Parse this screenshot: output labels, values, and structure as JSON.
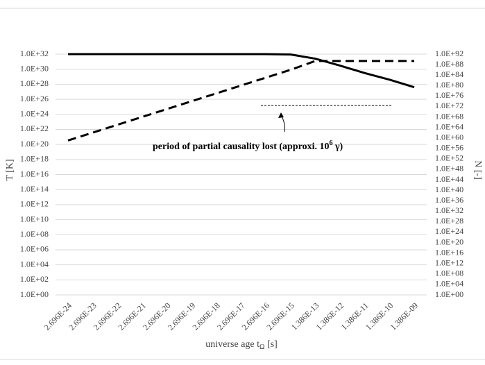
{
  "chart_data": {
    "type": "line",
    "x_label": {
      "text": "universe age t",
      "subscript": "Ω",
      "text_end": " [s]"
    },
    "y_label": "T [K]",
    "y2_label": "N [-]",
    "annotation": {
      "text": "period of partial causality lost (approxi. 10",
      "superscript": "6",
      "text_end": " γ)"
    },
    "categories": [
      "2.696E-24",
      "2.696E-23",
      "2.696E-22",
      "2.696E-21",
      "2.696E-20",
      "2.696E-19",
      "2.696E-18",
      "2.696E-17",
      "2.696E-16",
      "2.696E-15",
      "1.386E-13",
      "1.386E-12",
      "1.386E-11",
      "1.386E-10",
      "1.386E-09"
    ],
    "series": [
      {
        "name": "T",
        "color": "#000000",
        "linestyle": "solid",
        "axis": "y",
        "values": [
          1e+32,
          1e+32,
          1e+32,
          1e+32,
          1e+32,
          1e+32,
          1e+32,
          1e+32,
          1e+32,
          9e+31,
          2.5e+31,
          3e+30,
          3e+29,
          4e+28,
          4e+27
        ]
      },
      {
        "name": "N",
        "color": "#000000",
        "linestyle": "dashed",
        "axis": "y2",
        "values": [
          1e+59,
          1e+62,
          1e+65,
          1e+68,
          1e+71,
          1e+74,
          1e+77,
          1e+80,
          1e+83,
          1e+86,
          2.5e+89,
          2.5e+89,
          2.5e+89,
          2.5e+89,
          2.5e+89
        ]
      }
    ],
    "ylog": true,
    "y2log": true,
    "grid": true,
    "ylim": [
      1,
      1e+32
    ],
    "yticks": [
      {
        "value": 1,
        "label": "1.0E+00"
      },
      {
        "value": 100.0,
        "label": "1.0E+02"
      },
      {
        "value": 10000.0,
        "label": "1.0E+04"
      },
      {
        "value": 1000000.0,
        "label": "1.0E+06"
      },
      {
        "value": 100000000.0,
        "label": "1.0E+08"
      },
      {
        "value": 10000000000.0,
        "label": "1.0E+10"
      },
      {
        "value": 1000000000000.0,
        "label": "1.0E+12"
      },
      {
        "value": 100000000000000.0,
        "label": "1.0E+14"
      },
      {
        "value": 1e+16,
        "label": "1.0E+16"
      },
      {
        "value": 1e+18,
        "label": "1.0E+18"
      },
      {
        "value": 1e+20,
        "label": "1.0E+20"
      },
      {
        "value": 1e+22,
        "label": "1.0E+22"
      },
      {
        "value": 1e+24,
        "label": "1.0E+24"
      },
      {
        "value": 1e+26,
        "label": "1.0E+26"
      },
      {
        "value": 1e+28,
        "label": "1.0E+28"
      },
      {
        "value": 1e+30,
        "label": "1.0E+30"
      },
      {
        "value": 1e+32,
        "label": "1.0E+32"
      }
    ],
    "y2lim": [
      1,
      1e+92
    ],
    "y2ticks": [
      {
        "value": 1,
        "label": "1.0E+00"
      },
      {
        "value": 10000.0,
        "label": "1.0E+04"
      },
      {
        "value": 100000000.0,
        "label": "1.0E+08"
      },
      {
        "value": 1000000000000.0,
        "label": "1.0E+12"
      },
      {
        "value": 1e+16,
        "label": "1.0E+16"
      },
      {
        "value": 1e+20,
        "label": "1.0E+20"
      },
      {
        "value": 1e+24,
        "label": "1.0E+24"
      },
      {
        "value": 1e+28,
        "label": "1.0E+28"
      },
      {
        "value": 1e+32,
        "label": "1.0E+32"
      },
      {
        "value": 1e+36,
        "label": "1.0E+36"
      },
      {
        "value": 1e+40,
        "label": "1.0E+40"
      },
      {
        "value": 1e+44,
        "label": "1.0E+44"
      },
      {
        "value": 1e+48,
        "label": "1.0E+48"
      },
      {
        "value": 1e+52,
        "label": "1.0E+52"
      },
      {
        "value": 1e+56,
        "label": "1.0E+56"
      },
      {
        "value": 1e+60,
        "label": "1.0E+60"
      },
      {
        "value": 1e+64,
        "label": "1.0E+64"
      },
      {
        "value": 1e+68,
        "label": "1.0E+68"
      },
      {
        "value": 1e+72,
        "label": "1.0E+72"
      },
      {
        "value": 1e+76,
        "label": "1.0E+76"
      },
      {
        "value": 1e+80,
        "label": "1.0E+80"
      },
      {
        "value": 1e+84,
        "label": "1.0E+84"
      },
      {
        "value": 1e+88,
        "label": "1.0E+88"
      },
      {
        "value": 1e+92,
        "label": "1.0E+92"
      }
    ]
  }
}
